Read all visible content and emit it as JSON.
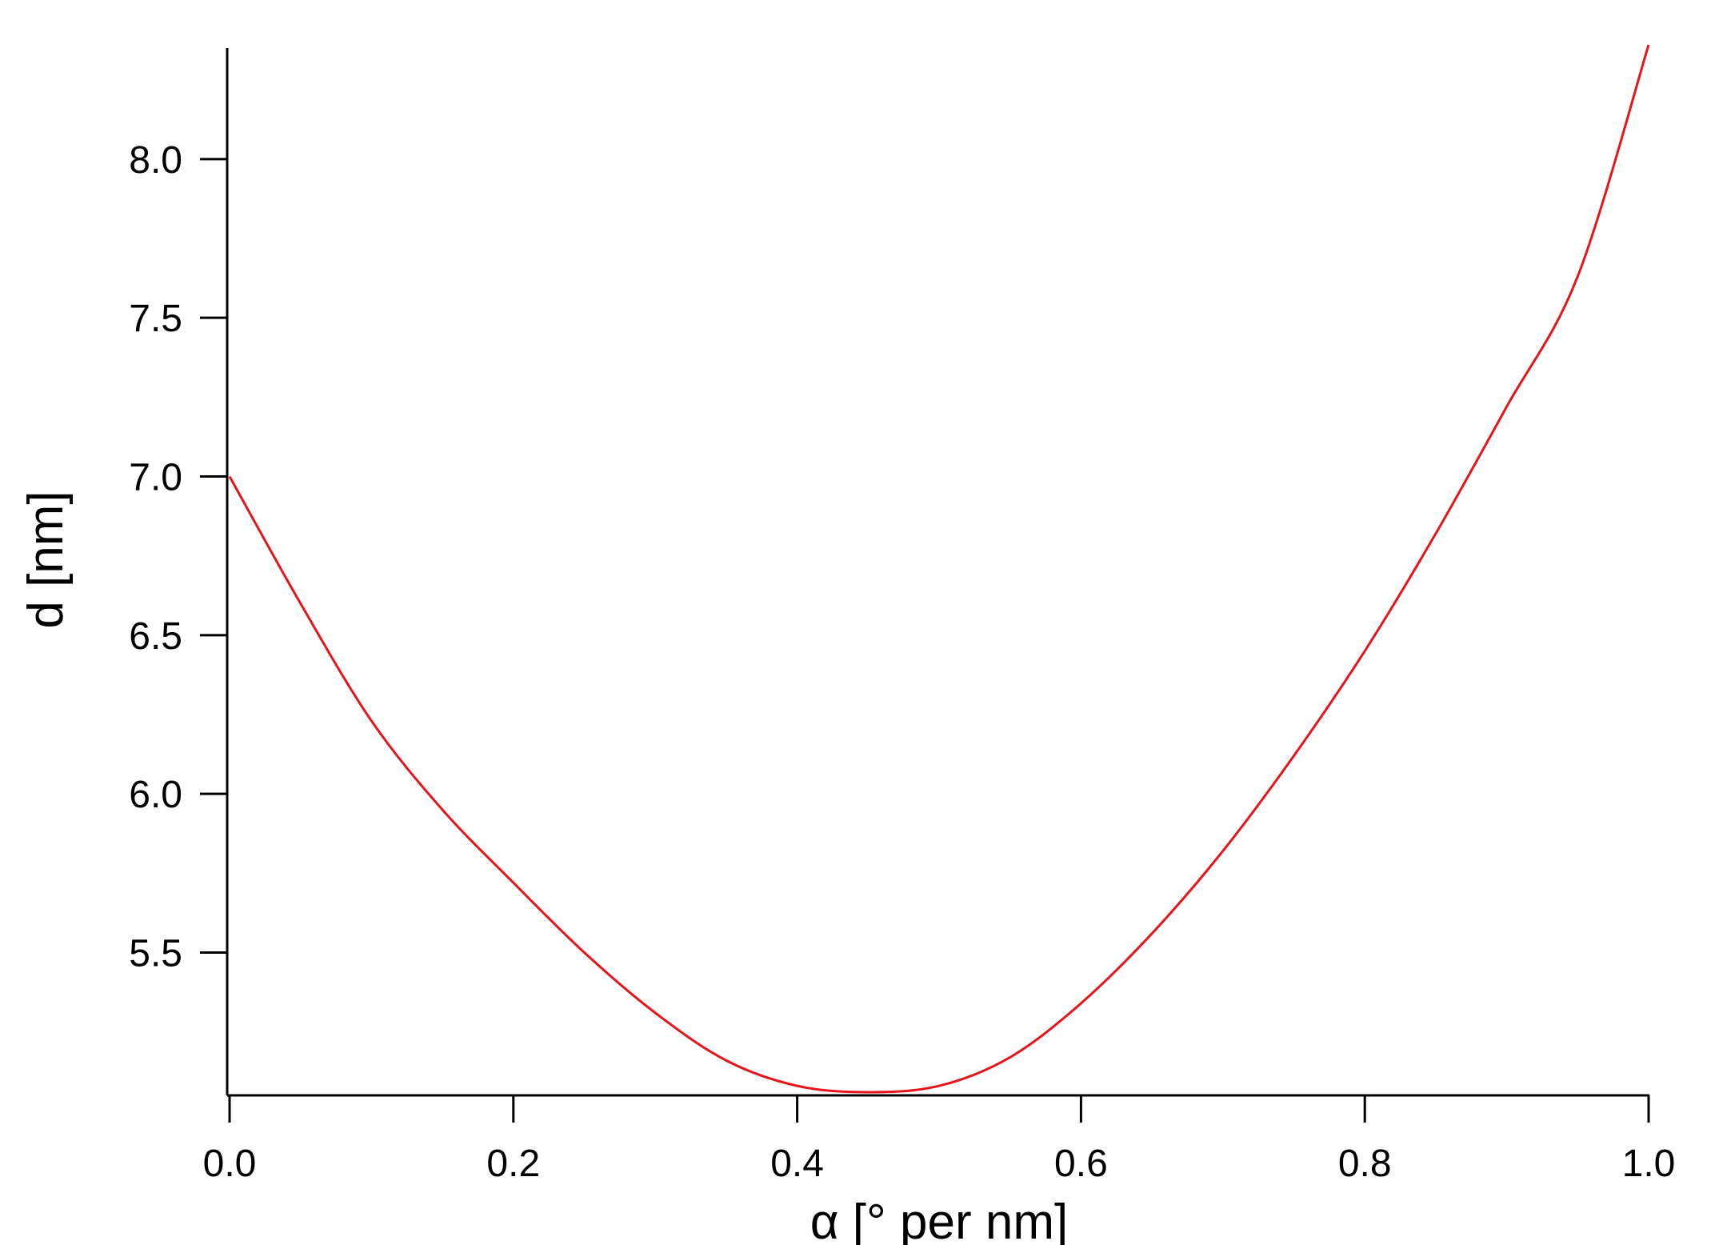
{
  "chart_data": {
    "type": "line",
    "title": "",
    "xlabel": "α [° per nm]",
    "ylabel": "d [nm]",
    "xlim": [
      0.0,
      1.0
    ],
    "ylim": [
      5.05,
      8.35
    ],
    "x_ticks": [
      0.0,
      0.2,
      0.4,
      0.6,
      0.8,
      1.0
    ],
    "x_tick_labels": [
      "0.0",
      "0.2",
      "0.4",
      "0.6",
      "0.8",
      "1.0"
    ],
    "y_ticks": [
      5.5,
      6.0,
      6.5,
      7.0,
      7.5,
      8.0
    ],
    "y_tick_labels": [
      "5.5",
      "6.0",
      "6.5",
      "7.0",
      "7.5",
      "8.0"
    ],
    "grid": false,
    "legend": "none",
    "series": [
      {
        "color": "#e8141b",
        "x": [
          0.0,
          0.05,
          0.1,
          0.15,
          0.2,
          0.25,
          0.3,
          0.35,
          0.4,
          0.45,
          0.5,
          0.55,
          0.6,
          0.65,
          0.7,
          0.75,
          0.8,
          0.85,
          0.9,
          0.95,
          1.0
        ],
        "y": [
          7.0,
          6.6,
          6.23,
          5.95,
          5.72,
          5.5,
          5.31,
          5.16,
          5.08,
          5.06,
          5.08,
          5.17,
          5.34,
          5.56,
          5.82,
          6.12,
          6.45,
          6.82,
          7.22,
          7.63,
          8.36
        ]
      }
    ]
  }
}
